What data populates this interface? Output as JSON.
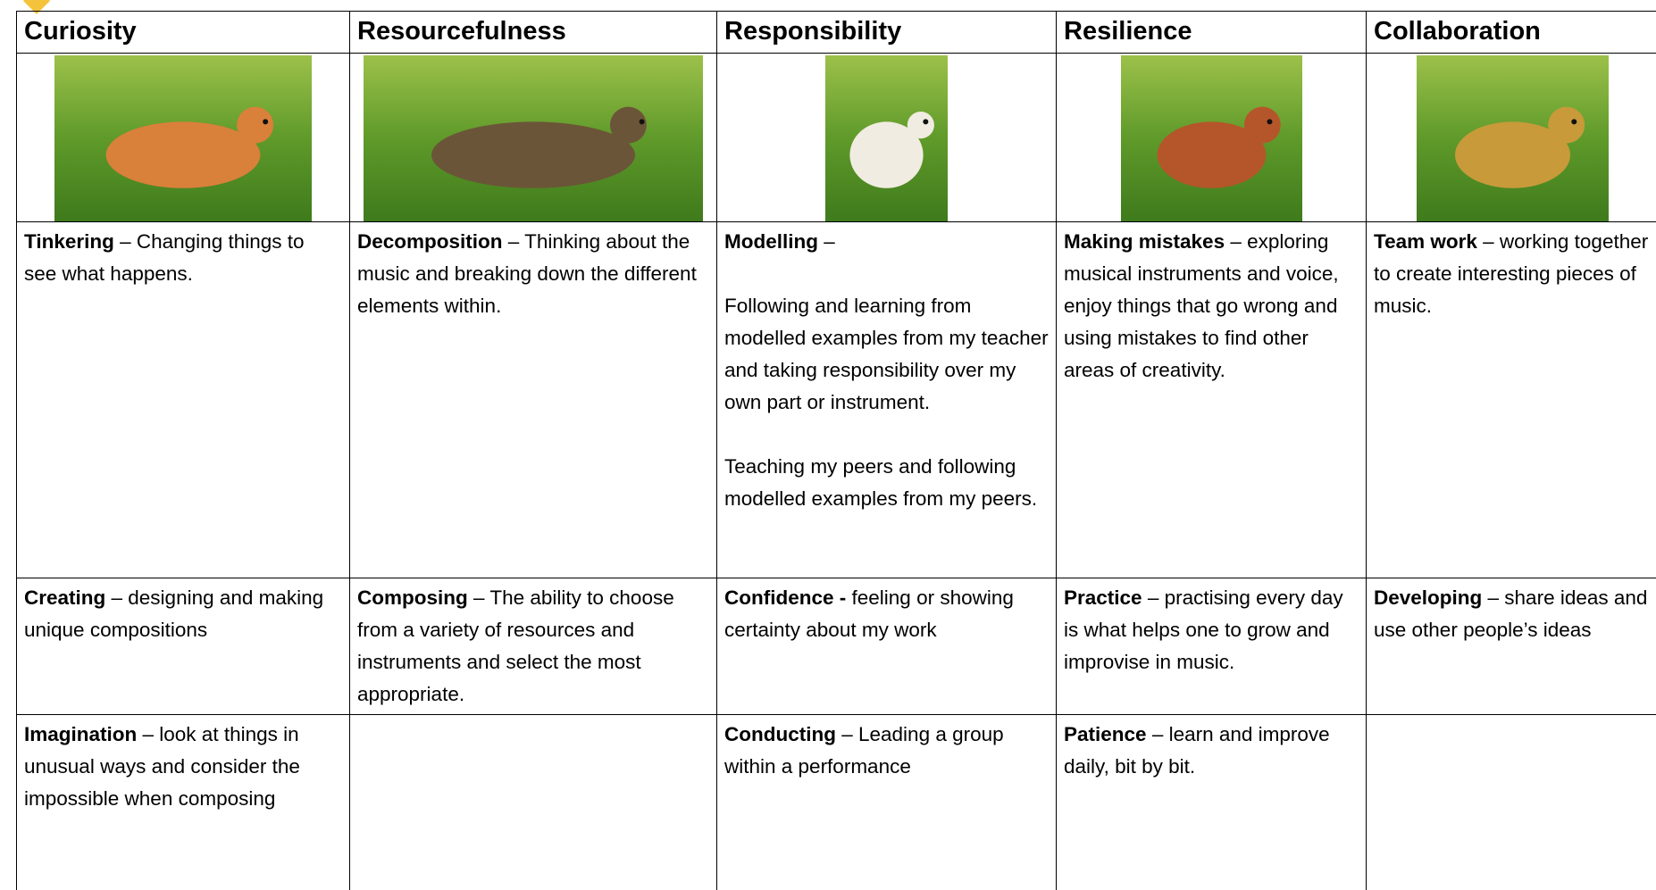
{
  "header": {
    "columns": [
      "Curiosity",
      "Resourcefulness",
      "Responsibility",
      "Resilience",
      "Collaboration"
    ]
  },
  "rows": [
    [
      {
        "term": "Tinkering",
        "paragraphs": [
          " – Changing things to see what happens."
        ]
      },
      {
        "term": "Decomposition",
        "paragraphs": [
          " – Thinking about the music and breaking down the different elements within."
        ]
      },
      {
        "term": "Modelling",
        "paragraphs": [
          " –",
          "Following and learning from modelled examples from my teacher and taking responsibility over my own part or instrument.",
          "Teaching my peers and following modelled examples from my peers."
        ]
      },
      {
        "term": "Making mistakes",
        "paragraphs": [
          " – exploring musical instruments and voice, enjoy things that go wrong and using mistakes to find other areas of creativity."
        ]
      },
      {
        "term": "Team work",
        "paragraphs": [
          " – working together to create interesting pieces of music."
        ]
      }
    ],
    [
      {
        "term": "Creating",
        "paragraphs": [
          " – designing and making unique compositions"
        ]
      },
      {
        "term": "Composing",
        "paragraphs": [
          " – The ability to choose from a variety of resources and instruments and select the most appropriate."
        ]
      },
      {
        "term": "Confidence -",
        "paragraphs": [
          " feeling or showing certainty about my work"
        ]
      },
      {
        "term": "Practice",
        "paragraphs": [
          " – practising every day is what helps one to grow and improvise in music."
        ]
      },
      {
        "term": "Developing",
        "paragraphs": [
          " – share ideas and use other people’s ideas"
        ]
      }
    ],
    [
      {
        "term": "Imagination",
        "paragraphs": [
          " – look at things in unusual ways and consider the impossible when composing"
        ]
      },
      null,
      {
        "term": "Conducting",
        "paragraphs": [
          " – Leading a group within a performance"
        ]
      },
      {
        "term": "Patience",
        "paragraphs": [
          " – learn and improve daily, bit by bit."
        ]
      },
      null
    ]
  ]
}
